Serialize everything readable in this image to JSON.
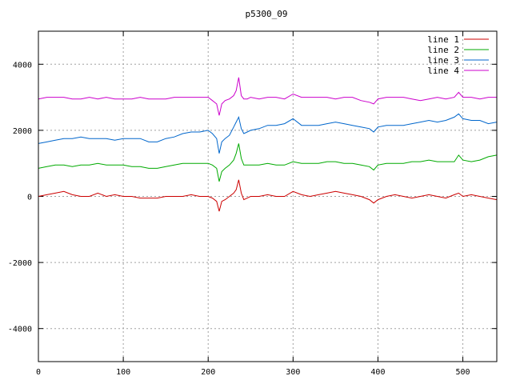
{
  "chart_data": {
    "type": "line",
    "title": "p5300_09",
    "xlabel": "",
    "ylabel": "",
    "xlim": [
      0,
      540
    ],
    "ylim": [
      -5000,
      5000
    ],
    "x_ticks": [
      0,
      100,
      200,
      300,
      400,
      500
    ],
    "y_ticks": [
      -4000,
      -2000,
      0,
      2000,
      4000
    ],
    "grid": true,
    "legend_position": "top-right",
    "series": [
      {
        "name": "line 1",
        "color": "#cc0000",
        "x": [
          0,
          10,
          20,
          30,
          40,
          50,
          60,
          70,
          80,
          90,
          100,
          110,
          120,
          130,
          140,
          150,
          160,
          170,
          180,
          190,
          200,
          205,
          210,
          213,
          216,
          220,
          225,
          230,
          233,
          236,
          239,
          242,
          246,
          250,
          260,
          270,
          280,
          290,
          300,
          310,
          320,
          330,
          340,
          350,
          360,
          370,
          380,
          390,
          395,
          400,
          410,
          420,
          430,
          440,
          450,
          460,
          470,
          480,
          490,
          495,
          500,
          510,
          520,
          530,
          540
        ],
        "y": [
          0,
          50,
          100,
          150,
          50,
          0,
          0,
          100,
          0,
          50,
          0,
          0,
          -50,
          -50,
          -50,
          0,
          0,
          0,
          50,
          0,
          0,
          -50,
          -150,
          -450,
          -150,
          -100,
          0,
          100,
          200,
          500,
          100,
          -100,
          -50,
          0,
          0,
          50,
          0,
          0,
          150,
          50,
          0,
          50,
          100,
          150,
          100,
          50,
          0,
          -100,
          -200,
          -100,
          0,
          50,
          0,
          -50,
          0,
          50,
          0,
          -50,
          50,
          100,
          0,
          50,
          0,
          -50,
          -100
        ]
      },
      {
        "name": "line 2",
        "color": "#00aa00",
        "x": [
          0,
          10,
          20,
          30,
          40,
          50,
          60,
          70,
          80,
          90,
          100,
          110,
          120,
          130,
          140,
          150,
          160,
          170,
          180,
          190,
          200,
          205,
          210,
          213,
          216,
          220,
          225,
          230,
          233,
          236,
          239,
          242,
          246,
          250,
          260,
          270,
          280,
          290,
          300,
          310,
          320,
          330,
          340,
          350,
          360,
          370,
          380,
          390,
          395,
          400,
          410,
          420,
          430,
          440,
          450,
          460,
          470,
          480,
          490,
          495,
          500,
          510,
          520,
          530,
          540
        ],
        "y": [
          850,
          900,
          950,
          950,
          900,
          950,
          950,
          1000,
          950,
          950,
          950,
          900,
          900,
          850,
          850,
          900,
          950,
          1000,
          1000,
          1000,
          1000,
          950,
          850,
          450,
          750,
          850,
          950,
          1100,
          1300,
          1600,
          1150,
          950,
          950,
          950,
          950,
          1000,
          950,
          950,
          1050,
          1000,
          1000,
          1000,
          1050,
          1050,
          1000,
          1000,
          950,
          900,
          800,
          950,
          1000,
          1000,
          1000,
          1050,
          1050,
          1100,
          1050,
          1050,
          1050,
          1250,
          1100,
          1050,
          1100,
          1200,
          1250
        ]
      },
      {
        "name": "line 3",
        "color": "#0066cc",
        "x": [
          0,
          10,
          20,
          30,
          40,
          50,
          60,
          70,
          80,
          90,
          100,
          110,
          120,
          130,
          140,
          150,
          160,
          170,
          180,
          190,
          200,
          205,
          210,
          213,
          216,
          220,
          225,
          230,
          233,
          236,
          239,
          242,
          246,
          250,
          260,
          270,
          280,
          290,
          300,
          310,
          320,
          330,
          340,
          350,
          360,
          370,
          380,
          390,
          395,
          400,
          410,
          420,
          430,
          440,
          450,
          460,
          470,
          480,
          490,
          495,
          500,
          510,
          520,
          530,
          540
        ],
        "y": [
          1600,
          1650,
          1700,
          1750,
          1750,
          1800,
          1750,
          1750,
          1750,
          1700,
          1750,
          1750,
          1750,
          1650,
          1650,
          1750,
          1800,
          1900,
          1950,
          1950,
          2000,
          1900,
          1750,
          1300,
          1650,
          1750,
          1850,
          2100,
          2250,
          2400,
          2050,
          1900,
          1950,
          2000,
          2050,
          2150,
          2150,
          2200,
          2350,
          2150,
          2150,
          2150,
          2200,
          2250,
          2200,
          2150,
          2100,
          2050,
          1950,
          2100,
          2150,
          2150,
          2150,
          2200,
          2250,
          2300,
          2250,
          2300,
          2400,
          2500,
          2350,
          2300,
          2300,
          2200,
          2250
        ]
      },
      {
        "name": "line 4",
        "color": "#cc00cc",
        "x": [
          0,
          10,
          20,
          30,
          40,
          50,
          60,
          70,
          80,
          90,
          100,
          110,
          120,
          130,
          140,
          150,
          160,
          170,
          180,
          190,
          200,
          205,
          210,
          213,
          216,
          220,
          225,
          230,
          233,
          236,
          239,
          242,
          246,
          250,
          260,
          270,
          280,
          290,
          300,
          310,
          320,
          330,
          340,
          350,
          360,
          370,
          380,
          390,
          395,
          400,
          410,
          420,
          430,
          440,
          450,
          460,
          470,
          480,
          490,
          495,
          500,
          510,
          520,
          530,
          540
        ],
        "y": [
          2950,
          3000,
          3000,
          3000,
          2950,
          2950,
          3000,
          2950,
          3000,
          2950,
          2950,
          2950,
          3000,
          2950,
          2950,
          2950,
          3000,
          3000,
          3000,
          3000,
          3000,
          2900,
          2800,
          2450,
          2800,
          2900,
          2950,
          3050,
          3200,
          3600,
          3050,
          2950,
          2950,
          3000,
          2950,
          3000,
          3000,
          2950,
          3100,
          3000,
          3000,
          3000,
          3000,
          2950,
          3000,
          3000,
          2900,
          2850,
          2800,
          2950,
          3000,
          3000,
          3000,
          2950,
          2900,
          2950,
          3000,
          2950,
          3000,
          3150,
          3000,
          3000,
          2950,
          3000,
          3000
        ]
      }
    ]
  }
}
